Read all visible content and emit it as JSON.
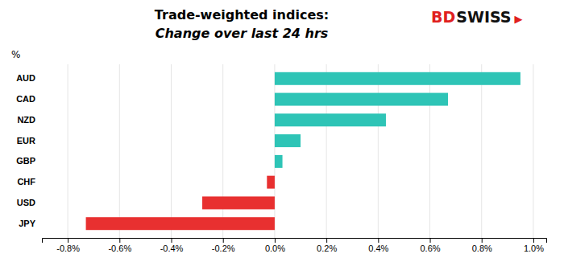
{
  "chart_data": {
    "type": "bar",
    "orientation": "horizontal",
    "title": "Trade-weighted indices:",
    "subtitle": "Change over last 24 hrs",
    "ylabel": "%",
    "categories": [
      "AUD",
      "CAD",
      "NZD",
      "EUR",
      "GBP",
      "CHF",
      "USD",
      "JPY"
    ],
    "values": [
      0.95,
      0.67,
      0.43,
      0.1,
      0.03,
      -0.03,
      -0.28,
      -0.73
    ],
    "colors": [
      "#2ec4b6",
      "#2ec4b6",
      "#2ec4b6",
      "#2ec4b6",
      "#2ec4b6",
      "#e83030",
      "#e83030",
      "#e83030"
    ],
    "xlim": [
      -0.9,
      1.05
    ],
    "xticks": [
      {
        "value": -0.8,
        "label": "-0.8%"
      },
      {
        "value": -0.6,
        "label": "-0.6%"
      },
      {
        "value": -0.4,
        "label": "-0.4%"
      },
      {
        "value": -0.2,
        "label": "-0.2%"
      },
      {
        "value": 0.0,
        "label": "0.0%"
      },
      {
        "value": 0.2,
        "label": "0.2%"
      },
      {
        "value": 0.4,
        "label": "0.4%"
      },
      {
        "value": 0.6,
        "label": "0.6%"
      },
      {
        "value": 0.8,
        "label": "0.8%"
      },
      {
        "value": 1.0,
        "label": "1.0%"
      }
    ],
    "grid": true,
    "annotations": [
      {
        "text": "BD",
        "color": "#e02020"
      },
      {
        "text": "SWISS",
        "color": "#111111"
      },
      {
        "text": "▶",
        "color": "#e02020"
      }
    ]
  }
}
